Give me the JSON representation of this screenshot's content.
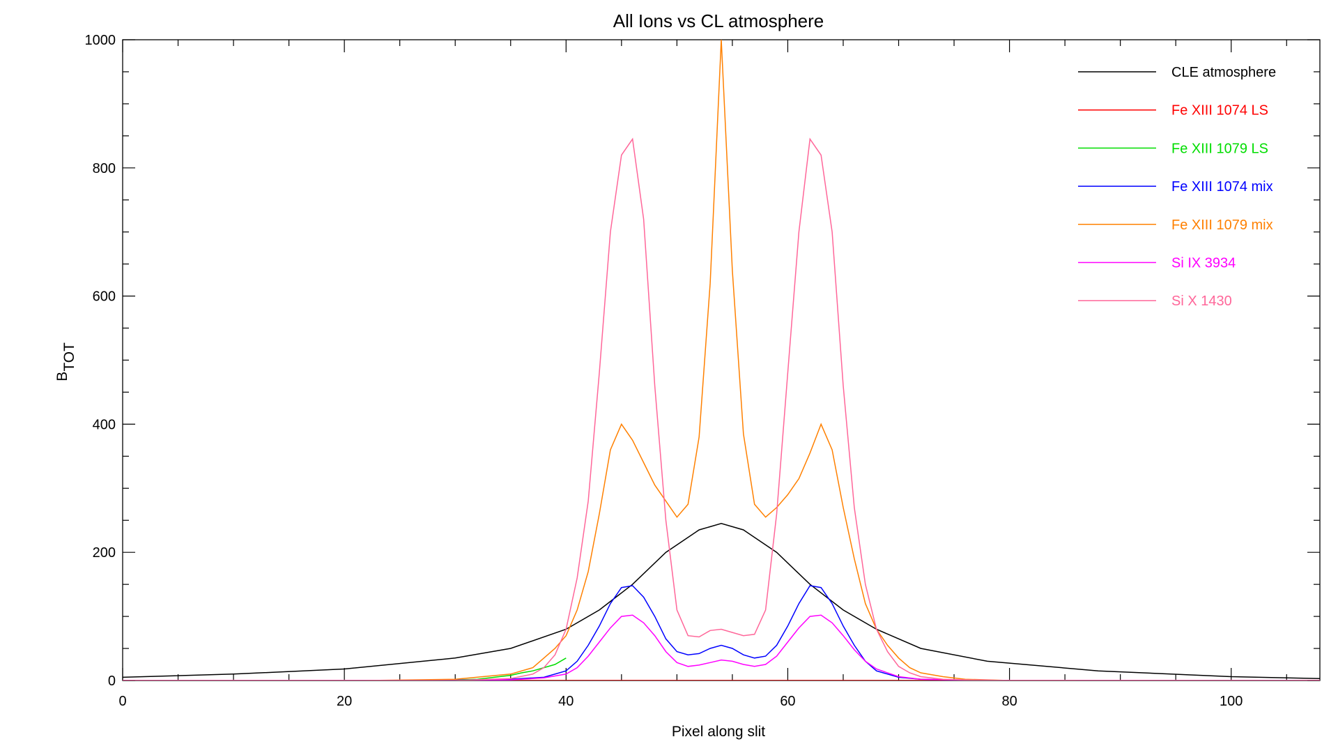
{
  "chart_data": {
    "type": "line",
    "title": "All Ions vs CL atmosphere",
    "xlabel": "Pixel along slit",
    "ylabel_main": "B",
    "ylabel_sub": "TOT",
    "xlim": [
      0,
      108
    ],
    "ylim": [
      0,
      1000
    ],
    "xticks": [
      0,
      20,
      40,
      60,
      80,
      100
    ],
    "yticks": [
      0,
      200,
      400,
      600,
      800,
      1000
    ],
    "xtick_labels": [
      "0",
      "20",
      "40",
      "60",
      "80",
      "100"
    ],
    "ytick_labels": [
      "0",
      "200",
      "400",
      "600",
      "800",
      "1000"
    ],
    "grid": false,
    "legend_position": "top-right",
    "series": [
      {
        "name": "CLE atmosphere",
        "color": "#000000",
        "x": [
          0,
          10,
          20,
          30,
          35,
          40,
          43,
          46,
          49,
          52,
          54,
          56,
          59,
          62,
          65,
          68,
          72,
          78,
          88,
          100,
          108
        ],
        "y": [
          5,
          10,
          18,
          35,
          50,
          80,
          110,
          150,
          200,
          235,
          245,
          235,
          200,
          150,
          110,
          80,
          50,
          30,
          15,
          6,
          3
        ]
      },
      {
        "name": "Fe XIII 1074 LS",
        "color": "#ff0000",
        "x": [
          0,
          108
        ],
        "y": [
          0,
          0
        ]
      },
      {
        "name": "Fe XIII 1079 LS",
        "color": "#00dd00",
        "x": [
          28,
          32,
          35,
          36,
          37,
          38,
          39,
          40
        ],
        "y": [
          0,
          2,
          8,
          12,
          15,
          20,
          25,
          35
        ]
      },
      {
        "name": "Fe XIII 1074 mix",
        "color": "#0000ff",
        "x": [
          28,
          35,
          38,
          40,
          41,
          42,
          43,
          44,
          45,
          46,
          47,
          48,
          49,
          50,
          51,
          52,
          53,
          54,
          55,
          56,
          57,
          58,
          59,
          60,
          61,
          62,
          63,
          64,
          65,
          66,
          67,
          68,
          70,
          72,
          75,
          80
        ],
        "y": [
          0,
          2,
          5,
          15,
          30,
          55,
          85,
          120,
          145,
          148,
          130,
          100,
          65,
          45,
          40,
          42,
          50,
          55,
          50,
          40,
          35,
          38,
          55,
          85,
          120,
          148,
          145,
          120,
          85,
          55,
          30,
          15,
          5,
          2,
          1,
          0
        ]
      },
      {
        "name": "Fe XIII 1079 mix",
        "color": "#ff8000",
        "x": [
          22,
          30,
          35,
          37,
          38,
          39,
          40,
          41,
          42,
          43,
          44,
          45,
          46,
          47,
          48,
          49,
          50,
          51,
          52,
          53,
          54,
          55,
          56,
          57,
          58,
          59,
          60,
          61,
          62,
          63,
          64,
          65,
          66,
          67,
          68,
          69,
          70,
          71,
          72,
          74,
          76,
          80,
          86
        ],
        "y": [
          0,
          2,
          10,
          20,
          35,
          50,
          70,
          110,
          170,
          260,
          360,
          400,
          375,
          340,
          305,
          280,
          255,
          275,
          380,
          620,
          1000,
          640,
          385,
          275,
          255,
          270,
          290,
          315,
          355,
          400,
          360,
          270,
          190,
          120,
          80,
          55,
          35,
          20,
          12,
          6,
          2,
          0,
          0
        ]
      },
      {
        "name": "Si IX 3934",
        "color": "#ff00ff",
        "x": [
          0,
          30,
          35,
          38,
          40,
          41,
          42,
          43,
          44,
          45,
          46,
          47,
          48,
          49,
          50,
          51,
          52,
          53,
          54,
          55,
          56,
          57,
          58,
          59,
          60,
          61,
          62,
          63,
          64,
          65,
          66,
          67,
          68,
          70,
          72,
          75,
          80,
          108
        ],
        "y": [
          0,
          0,
          1,
          4,
          10,
          20,
          38,
          60,
          82,
          100,
          102,
          90,
          70,
          45,
          28,
          22,
          24,
          28,
          32,
          30,
          25,
          22,
          25,
          38,
          60,
          82,
          100,
          102,
          90,
          70,
          48,
          30,
          18,
          6,
          2,
          1,
          0,
          0
        ]
      },
      {
        "name": "Si X 1430",
        "color": "#ff6699",
        "x": [
          0,
          30,
          35,
          37,
          38,
          39,
          40,
          41,
          42,
          43,
          44,
          45,
          46,
          47,
          48,
          49,
          50,
          51,
          52,
          53,
          54,
          55,
          56,
          57,
          58,
          59,
          60,
          61,
          62,
          63,
          64,
          65,
          66,
          67,
          68,
          69,
          70,
          71,
          72,
          74,
          76,
          80,
          108
        ],
        "y": [
          0,
          0,
          3,
          10,
          20,
          40,
          80,
          160,
          280,
          480,
          700,
          820,
          845,
          720,
          460,
          250,
          110,
          70,
          68,
          78,
          80,
          75,
          70,
          72,
          110,
          260,
          480,
          700,
          845,
          820,
          700,
          460,
          270,
          150,
          80,
          45,
          22,
          12,
          6,
          2,
          1,
          0,
          0
        ]
      }
    ]
  }
}
